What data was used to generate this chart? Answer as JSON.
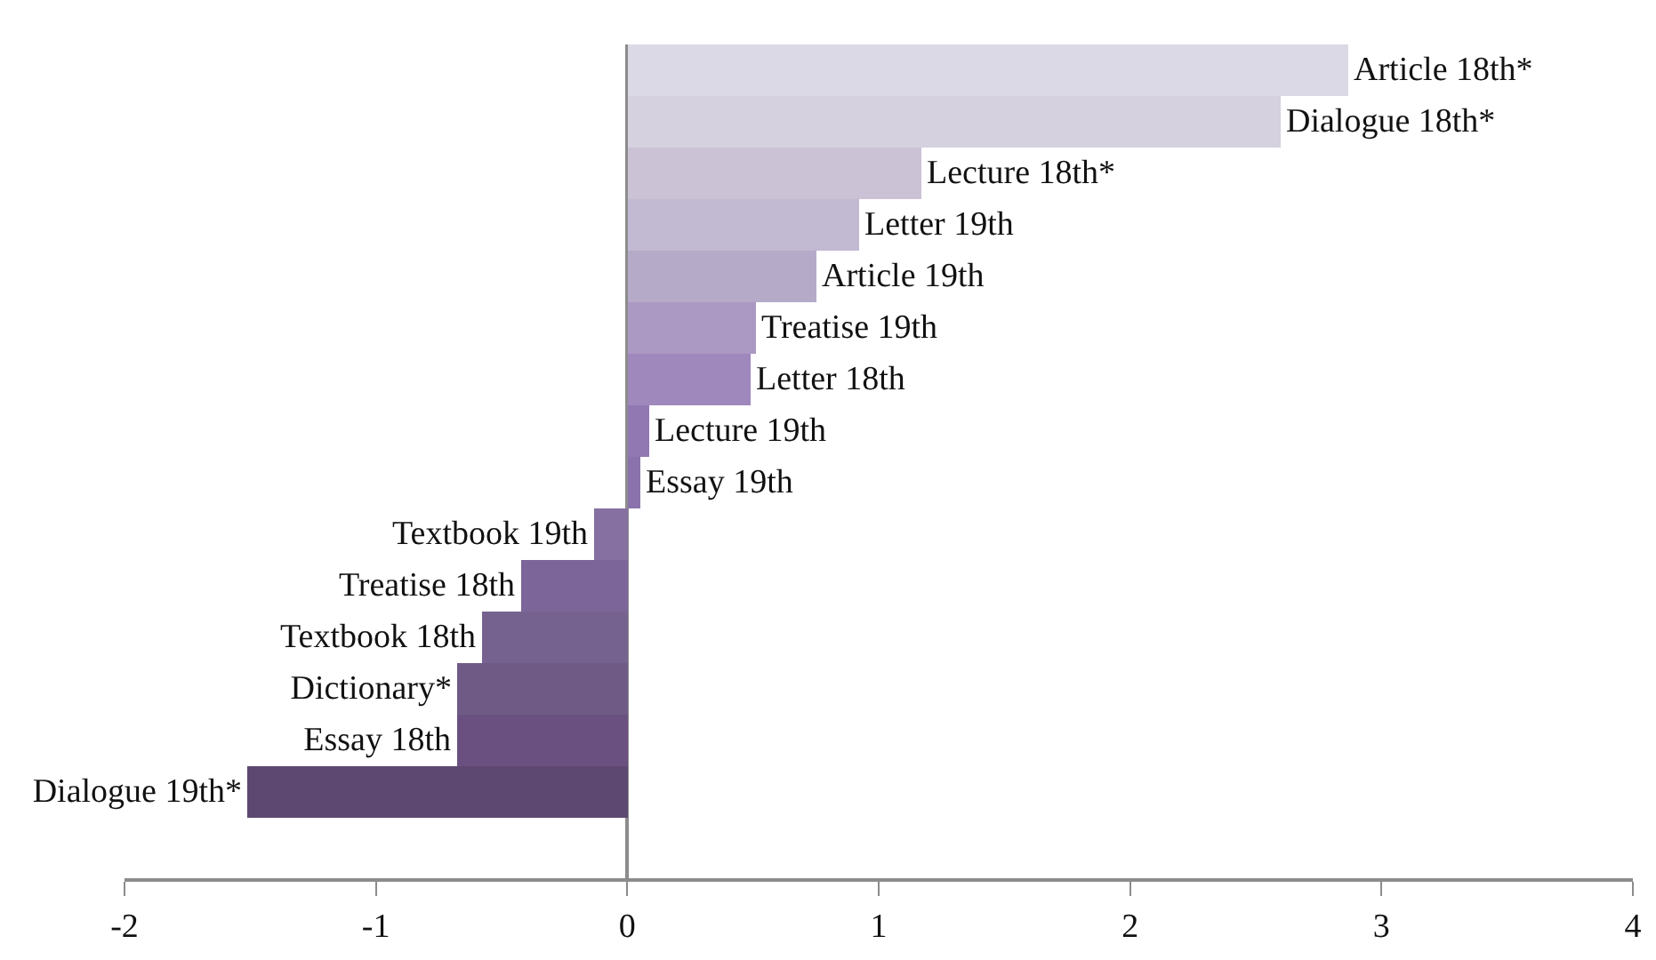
{
  "chart_data": {
    "type": "bar",
    "orientation": "horizontal",
    "tick_labels": "x",
    "categories": [
      "Article 18th*",
      "Dialogue 18th*",
      "Lecture 18th*",
      "Letter 19th",
      "Article 19th",
      "Treatise 19th",
      "Letter 18th",
      "Lecture 19th",
      "Essay 19th",
      "Textbook 19th",
      "Treatise 18th",
      "Textbook 18th",
      "Dictionary*",
      "Essay 18th",
      "Dialogue 19th*"
    ],
    "values": [
      2.87,
      2.6,
      1.17,
      0.92,
      0.75,
      0.51,
      0.49,
      0.09,
      0.05,
      -0.13,
      -0.42,
      -0.58,
      -0.68,
      -0.68,
      -1.51
    ],
    "colors": [
      "#dcd9e6",
      "#d5d1df",
      "#cbc2d6",
      "#c2b9d3",
      "#b6aac9",
      "#ab98c3",
      "#9e88bc",
      "#9178b3",
      "#8a72ac",
      "#8670a2",
      "#7c6598",
      "#76628f",
      "#6e5a85",
      "#6a5080",
      "#5c4870"
    ],
    "xlim": [
      -2,
      4
    ],
    "xticks": [
      -2,
      -1,
      0,
      1,
      2,
      3,
      4
    ],
    "legend": false
  }
}
